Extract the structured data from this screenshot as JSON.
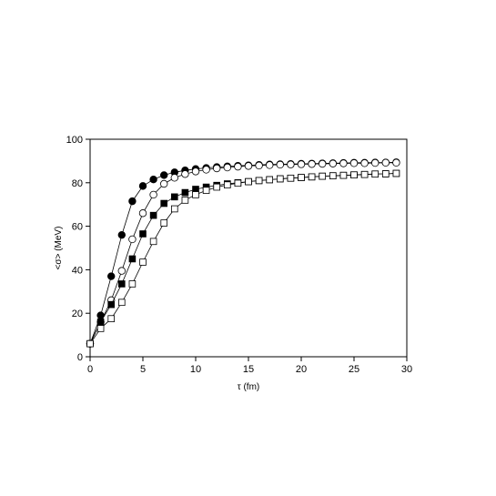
{
  "chart_data": {
    "type": "line",
    "title": "",
    "xlabel": "τ (fm)",
    "ylabel": "<σ> (MeV)",
    "xlim": [
      0,
      30
    ],
    "ylim": [
      0,
      100
    ],
    "xticks": [
      0,
      5,
      10,
      15,
      20,
      25,
      30
    ],
    "yticks": [
      0,
      20,
      40,
      60,
      80,
      100
    ],
    "grid": false,
    "legend": "none",
    "series": [
      {
        "marker": "filled-circle",
        "x": [
          0,
          1,
          2,
          3,
          4,
          5,
          6,
          7,
          8,
          9,
          10,
          11,
          12,
          13,
          14,
          15,
          16,
          17,
          18,
          19,
          20,
          21,
          22,
          23,
          24,
          25,
          26,
          27,
          28,
          29
        ],
        "values": [
          6,
          19,
          37,
          56,
          71.5,
          78.5,
          81.5,
          83.5,
          84.8,
          85.7,
          86.3,
          86.8,
          87.2,
          87.5,
          87.8,
          88.0,
          88.2,
          88.4,
          88.5,
          88.6,
          88.7,
          88.8,
          88.9,
          89.0,
          89.1,
          89.2,
          89.2,
          89.3,
          89.3,
          89.4
        ]
      },
      {
        "marker": "open-circle",
        "x": [
          0,
          1,
          2,
          3,
          4,
          5,
          6,
          7,
          8,
          9,
          10,
          11,
          12,
          13,
          14,
          15,
          16,
          17,
          18,
          19,
          20,
          21,
          22,
          23,
          24,
          25,
          26,
          27,
          28,
          29
        ],
        "values": [
          6,
          16,
          26,
          39.5,
          54,
          66,
          74.5,
          79.5,
          82.3,
          84.0,
          85.2,
          86.0,
          86.6,
          87.0,
          87.4,
          87.7,
          87.9,
          88.1,
          88.3,
          88.4,
          88.5,
          88.6,
          88.7,
          88.8,
          88.9,
          89.0,
          89.0,
          89.1,
          89.2,
          89.2
        ]
      },
      {
        "marker": "filled-square",
        "x": [
          0,
          1,
          2,
          3,
          4,
          5,
          6,
          7,
          8,
          9,
          10,
          11,
          12,
          13,
          14,
          15,
          16,
          17,
          18,
          19,
          20,
          21,
          22,
          23,
          24,
          25,
          26,
          27,
          28,
          29
        ],
        "values": [
          6,
          16,
          24,
          33.5,
          45,
          56.5,
          65,
          70.5,
          73.5,
          75.5,
          77,
          78,
          78.8,
          79.5,
          80.0,
          80.5,
          81.0,
          81.4,
          81.8,
          82.1,
          82.4,
          82.7,
          83.0,
          83.2,
          83.4,
          83.6,
          83.8,
          84.0,
          84.1,
          84.3
        ]
      },
      {
        "marker": "open-square",
        "x": [
          0,
          1,
          2,
          3,
          4,
          5,
          6,
          7,
          8,
          9,
          10,
          11,
          12,
          13,
          14,
          15,
          16,
          17,
          18,
          19,
          20,
          21,
          22,
          23,
          24,
          25,
          26,
          27,
          28,
          29
        ],
        "values": [
          6,
          13,
          17.5,
          25,
          33.5,
          43.5,
          53,
          61.5,
          68,
          72,
          74.5,
          76.5,
          78,
          79,
          79.8,
          80.5,
          81.0,
          81.4,
          81.8,
          82.1,
          82.4,
          82.7,
          83.0,
          83.2,
          83.4,
          83.6,
          83.8,
          84.0,
          84.1,
          84.3
        ]
      }
    ]
  }
}
